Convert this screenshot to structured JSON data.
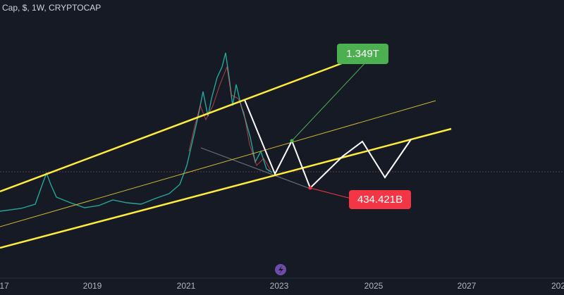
{
  "header": {
    "title": "Cap, $, 1W, CRYPTOCAP"
  },
  "annotations": {
    "target_high": "1.349T",
    "target_low": "434.421B"
  },
  "x_axis": {
    "labels": [
      "17",
      "2019",
      "2021",
      "2023",
      "2025",
      "2027",
      "202"
    ]
  }
}
